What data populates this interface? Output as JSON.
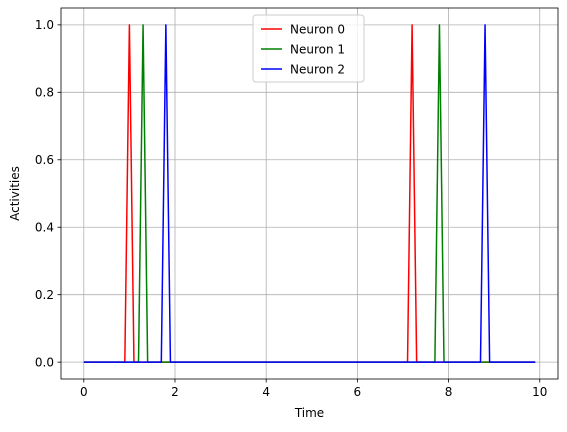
{
  "chart_data": {
    "type": "line",
    "xlabel": "Time",
    "ylabel": "Activities",
    "xlim": [
      -0.5,
      10.4
    ],
    "ylim": [
      -0.05,
      1.05
    ],
    "xticks": [
      0,
      2,
      4,
      6,
      8,
      10
    ],
    "xtick_labels": [
      "0",
      "2",
      "4",
      "6",
      "8",
      "10"
    ],
    "yticks": [
      0.0,
      0.2,
      0.4,
      0.6,
      0.8,
      1.0
    ],
    "ytick_labels": [
      "0.0",
      "0.2",
      "0.4",
      "0.6",
      "0.8",
      "1.0"
    ],
    "grid": true,
    "legend_position": "top-center",
    "series": [
      {
        "name": "Neuron 0",
        "color": "#ff0000",
        "x": [
          0.0,
          0.9,
          1.0,
          1.1,
          7.1,
          7.2,
          7.3,
          9.9
        ],
        "y": [
          0,
          0,
          1,
          0,
          0,
          1,
          0,
          0
        ]
      },
      {
        "name": "Neuron 1",
        "color": "#008000",
        "x": [
          0.0,
          1.2,
          1.3,
          1.4,
          7.7,
          7.8,
          7.9,
          9.9
        ],
        "y": [
          0,
          0,
          1,
          0,
          0,
          1,
          0,
          0
        ]
      },
      {
        "name": "Neuron 2",
        "color": "#0000ff",
        "x": [
          0.0,
          1.7,
          1.8,
          1.9,
          8.7,
          8.8,
          8.9,
          9.9
        ],
        "y": [
          0,
          0,
          1,
          0,
          0,
          1,
          0,
          0
        ]
      }
    ]
  }
}
